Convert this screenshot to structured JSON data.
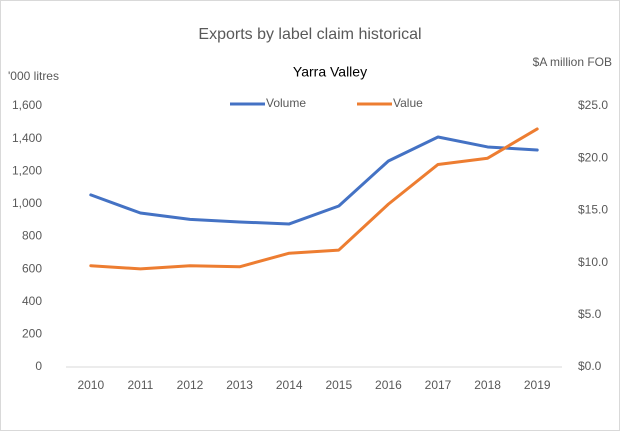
{
  "chart_data": {
    "type": "line",
    "title": "Exports by label claim historical",
    "subtitle": "Yarra Valley",
    "y_label": "'000 litres",
    "y2_label": "$A million FOB",
    "categories": [
      "2010",
      "2011",
      "2012",
      "2013",
      "2014",
      "2015",
      "2016",
      "2017",
      "2018",
      "2019"
    ],
    "series": [
      {
        "name": "Volume",
        "color": "#4472c4",
        "values": [
          1055,
          944,
          905,
          889,
          877,
          987,
          1263,
          1410,
          1349,
          1330
        ]
      },
      {
        "name": "Value",
        "color": "#ed7d31",
        "axis": "y2",
        "values": [
          9.7,
          9.4,
          9.7,
          9.6,
          10.9,
          11.2,
          15.6,
          19.4,
          20.0,
          22.8
        ]
      }
    ],
    "ylim": [
      0,
      1600
    ],
    "yticks": [
      0,
      200,
      400,
      600,
      800,
      {
        "value": 1000,
        "label": "1,000"
      },
      {
        "value": 1200,
        "label": "1,200"
      },
      {
        "value": 1400,
        "label": "1,400"
      },
      {
        "value": 1600,
        "label": "1,600"
      }
    ],
    "y2lim": [
      0,
      25
    ],
    "y2ticks": [
      {
        "value": 0,
        "label": "$0.0"
      },
      {
        "value": 5,
        "label": "$5.0"
      },
      {
        "value": 10,
        "label": "$10.0"
      },
      {
        "value": 15,
        "label": "$15.0"
      },
      {
        "value": 20,
        "label": "$20.0"
      },
      {
        "value": 25,
        "label": "$25.0"
      }
    ],
    "legend": "top",
    "grid": false
  }
}
